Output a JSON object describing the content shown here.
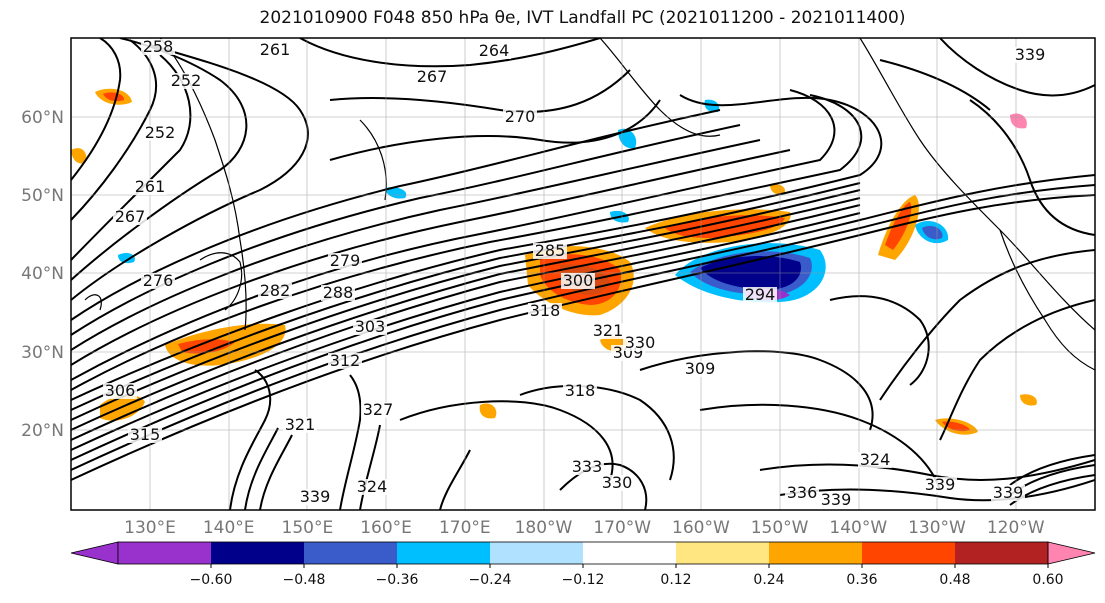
{
  "title": "2021010900 F048 850 hPa θe, IVT Landfall PC (2021011200 - 2021011400)",
  "map": {
    "lat_labels": [
      "60°N",
      "50°N",
      "40°N",
      "30°N",
      "20°N"
    ],
    "lon_labels": [
      "130°E",
      "140°E",
      "150°E",
      "160°E",
      "170°E",
      "180°W",
      "170°W",
      "160°W",
      "150°W",
      "140°W",
      "130°W",
      "120°W"
    ]
  },
  "contour_labels": [
    "258",
    "252",
    "261",
    "264",
    "267",
    "270",
    "252",
    "261",
    "267",
    "276",
    "285",
    "300",
    "279",
    "282",
    "288",
    "294",
    "303",
    "318",
    "321",
    "309",
    "312",
    "318",
    "306",
    "309",
    "315",
    "321",
    "327",
    "333",
    "330",
    "324",
    "336",
    "339",
    "339",
    "330",
    "339",
    "324",
    "339",
    "339"
  ],
  "colorbar": {
    "ticks": [
      "−0.60",
      "−0.48",
      "−0.36",
      "−0.24",
      "−0.12",
      "0.12",
      "0.24",
      "0.36",
      "0.48",
      "0.60"
    ],
    "colors": [
      "#9932cc",
      "#00008b",
      "#3a5ccb",
      "#00bfff",
      "#b0e2ff",
      "#ffffff",
      "#ffe680",
      "#ffa500",
      "#ff4500",
      "#b22222",
      "#ff85b0"
    ]
  }
}
